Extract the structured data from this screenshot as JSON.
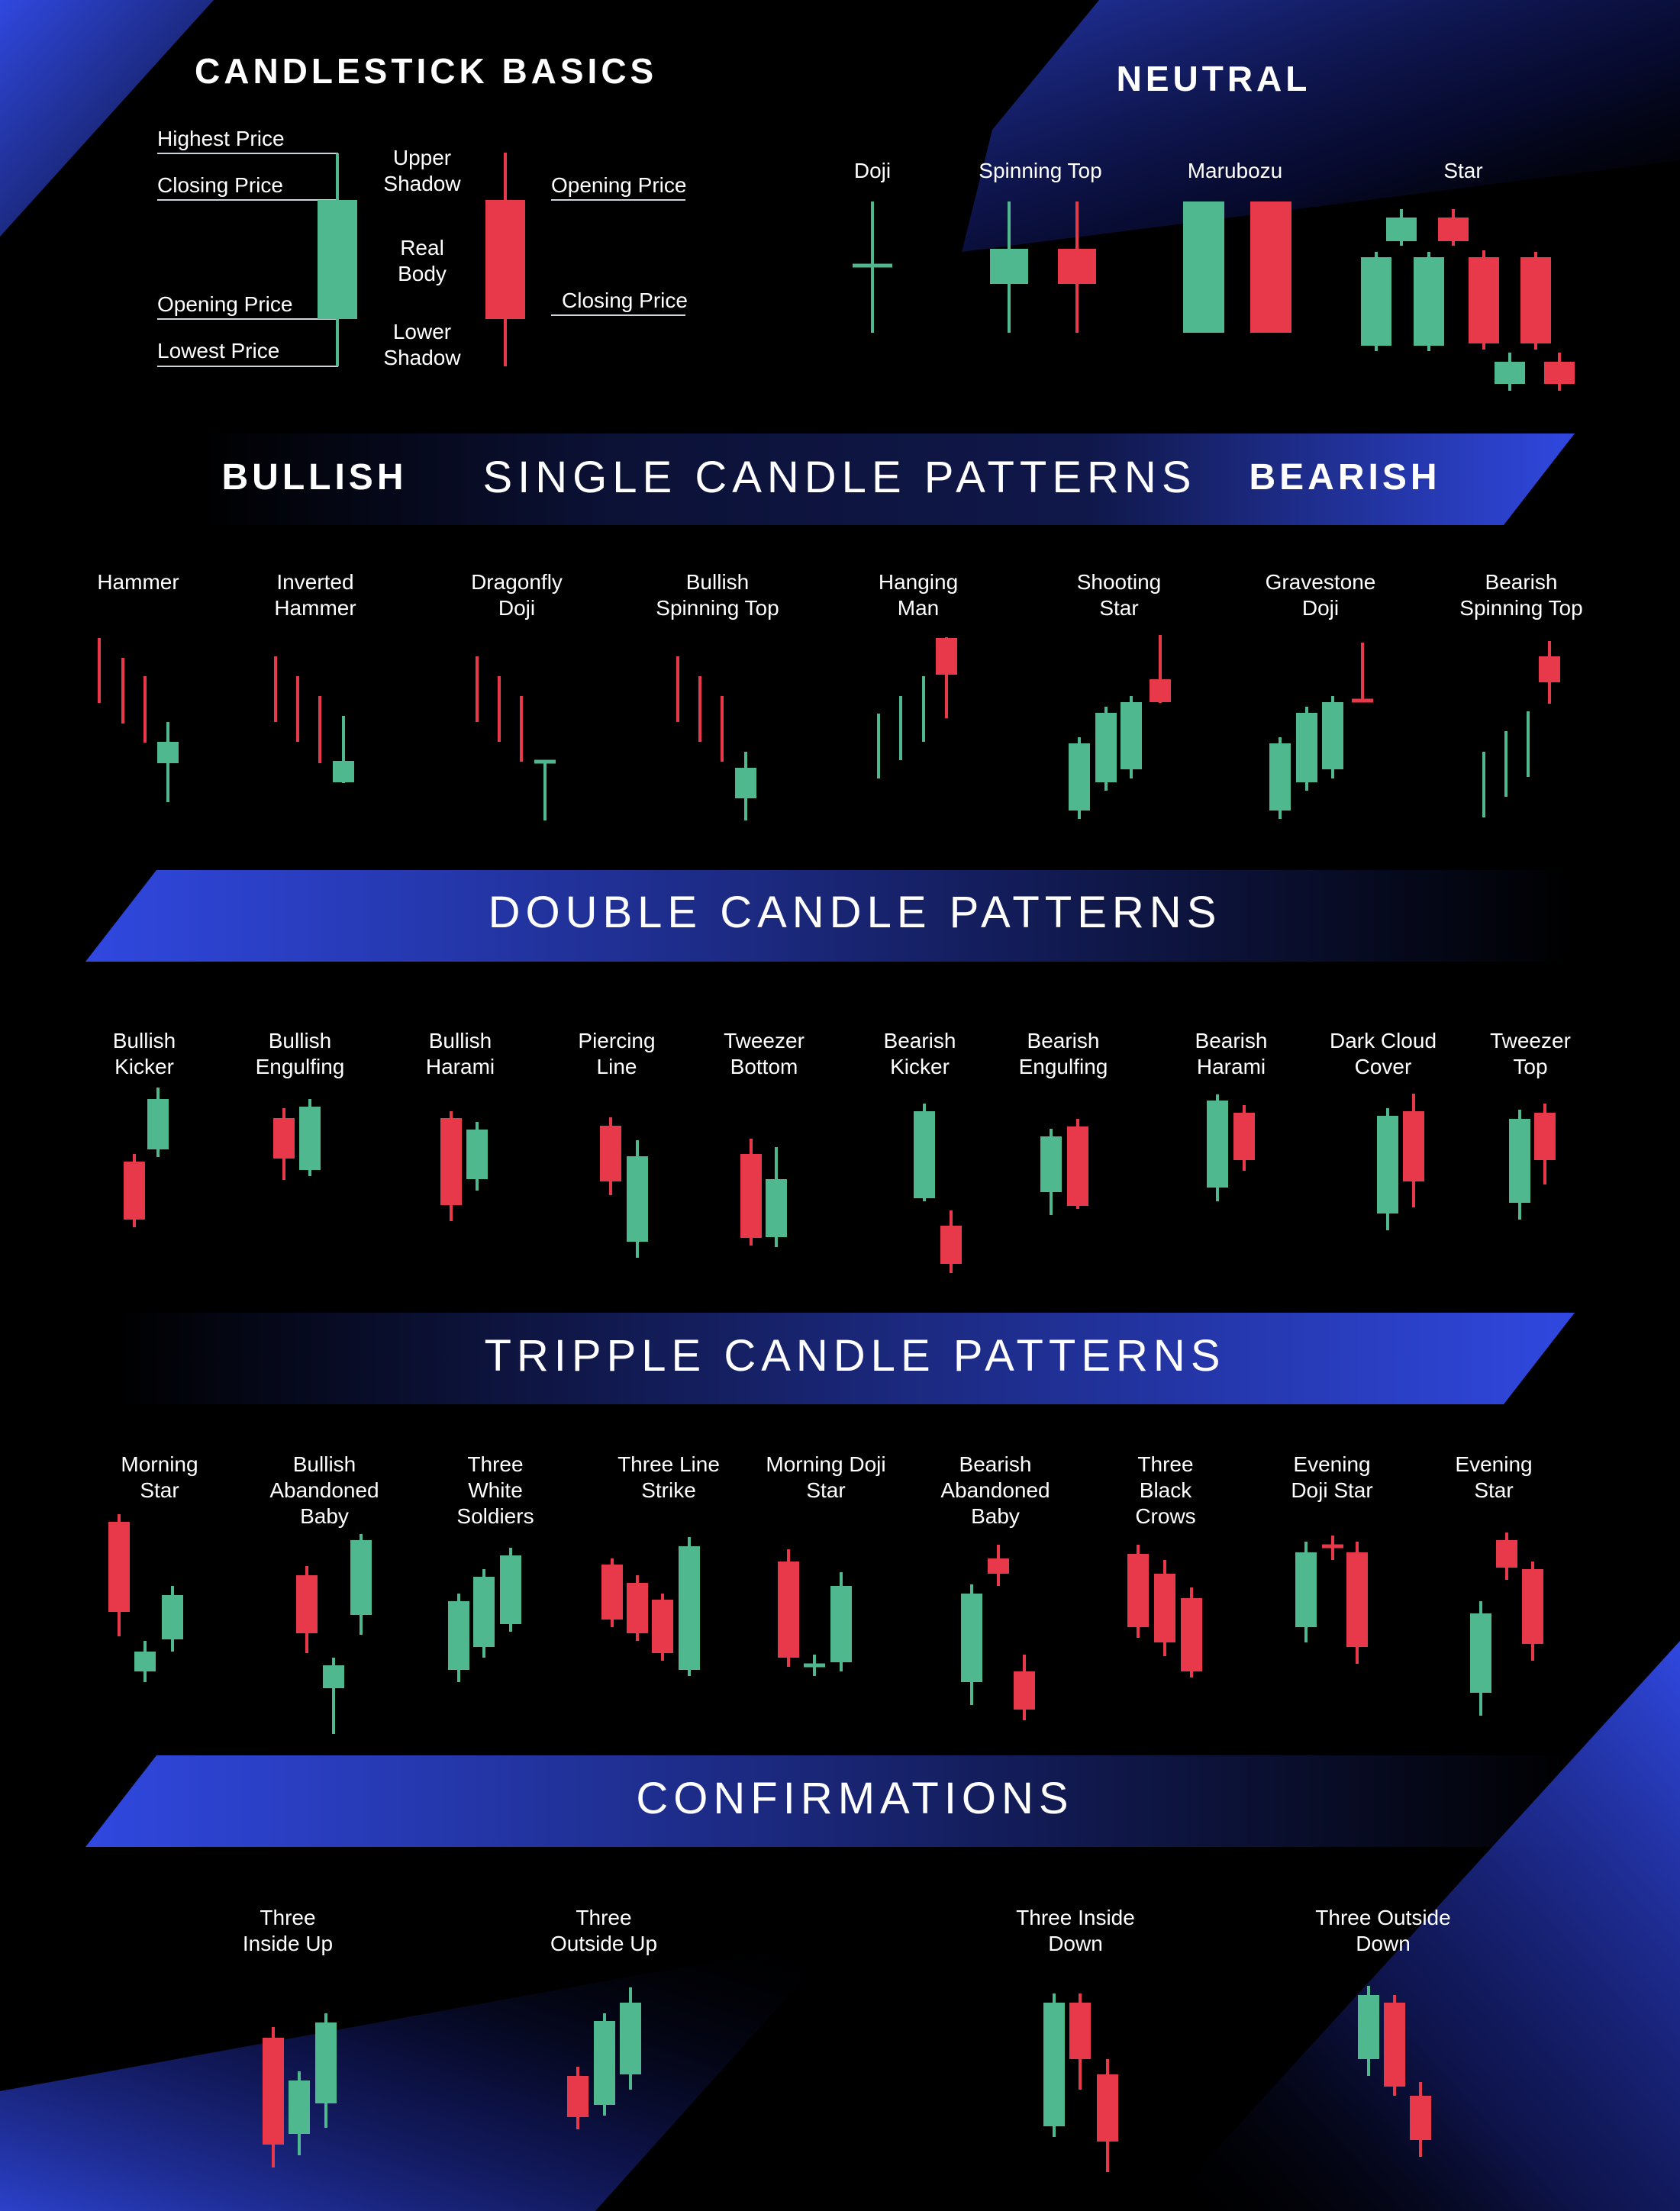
{
  "colors": {
    "background": "#000000",
    "bullish": "#4FB88E",
    "bearish": "#E8394A",
    "accent": "#2E45D6",
    "text": "#FFFFFF"
  },
  "basics": {
    "title": "CANDLESTICK BASICS",
    "labels": {
      "highest": "Highest Price",
      "closing_left": "Closing Price",
      "opening_left": "Opening Price",
      "lowest": "Lowest Price",
      "upper_shadow": "Upper\nShadow",
      "real_body": "Real\nBody",
      "lower_shadow": "Lower\nShadow",
      "opening_right": "Opening Price",
      "closing_right": "Closing Price"
    }
  },
  "neutral": {
    "title": "NEUTRAL",
    "patterns": [
      "Doji",
      "Spinning Top",
      "Marubozu",
      "Star"
    ]
  },
  "single": {
    "title": "SINGLE CANDLE PATTERNS",
    "bullish_label": "BULLISH",
    "bearish_label": "BEARISH",
    "patterns": [
      "Hammer",
      "Inverted\nHammer",
      "Dragonfly\nDoji",
      "Bullish\nSpinning Top",
      "Hanging\nMan",
      "Shooting\nStar",
      "Gravestone\nDoji",
      "Bearish\nSpinning Top"
    ]
  },
  "double": {
    "title": "DOUBLE CANDLE PATTERNS",
    "patterns": [
      "Bullish\nKicker",
      "Bullish\nEngulfing",
      "Bullish\nHarami",
      "Piercing\nLine",
      "Tweezer\nBottom",
      "Bearish\nKicker",
      "Bearish\nEngulfing",
      "Bearish\nHarami",
      "Dark Cloud\nCover",
      "Tweezer\nTop"
    ]
  },
  "triple": {
    "title": "TRIPPLE CANDLE PATTERNS",
    "patterns": [
      "Morning\nStar",
      "Bullish\nAbandoned\nBaby",
      "Three\nWhite\nSoldiers",
      "Three Line\nStrike",
      "Morning Doji\nStar",
      "Bearish\nAbandoned\nBaby",
      "Three\nBlack\nCrows",
      "Evening\nDoji Star",
      "Evening\nStar"
    ]
  },
  "confirmations": {
    "title": "CONFIRMATIONS",
    "patterns": [
      "Three\nInside Up",
      "Three\nOutside Up",
      "Three Inside\nDown",
      "Three Outside\nDown"
    ]
  }
}
